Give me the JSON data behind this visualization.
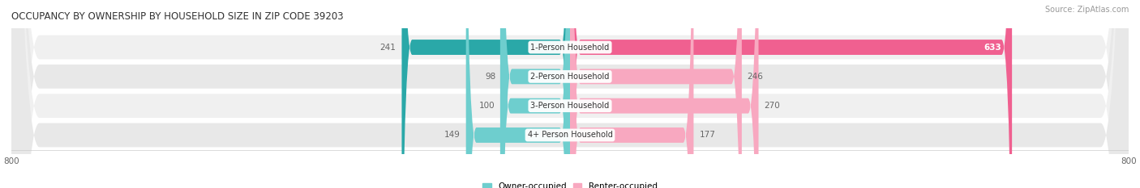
{
  "title": "OCCUPANCY BY OWNERSHIP BY HOUSEHOLD SIZE IN ZIP CODE 39203",
  "source": "Source: ZipAtlas.com",
  "categories": [
    "1-Person Household",
    "2-Person Household",
    "3-Person Household",
    "4+ Person Household"
  ],
  "owner_values": [
    241,
    98,
    100,
    149
  ],
  "renter_values": [
    633,
    246,
    270,
    177
  ],
  "owner_color_1": "#2aa8a8",
  "owner_color_2": "#6ecece",
  "renter_color_1": "#f06090",
  "renter_color_2": "#f8a8c0",
  "row_bg_color_1": "#f0f0f0",
  "row_bg_color_2": "#e8e8e8",
  "axis_max": 800,
  "axis_min": -800,
  "label_color": "#666666",
  "title_color": "#333333",
  "legend_owner": "Owner-occupied",
  "legend_renter": "Renter-occupied",
  "background_color": "#ffffff",
  "bar_value_color_inside": "#ffffff",
  "bar_value_color_outside": "#666666"
}
